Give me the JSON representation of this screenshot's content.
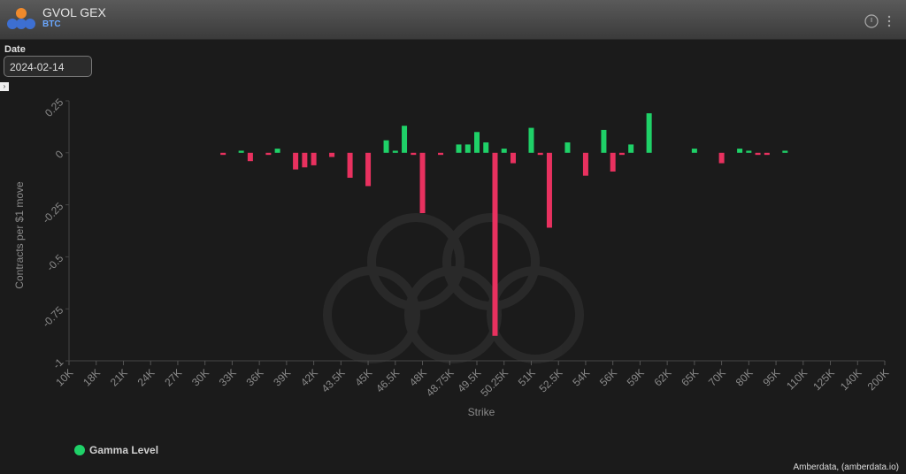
{
  "header": {
    "title": "GVOL GEX",
    "subtitle": "BTC"
  },
  "date": {
    "label": "Date",
    "value": "2024-02-14"
  },
  "chart_data": {
    "type": "bar",
    "xlabel": "Strike",
    "ylabel": "Contracts per $1 move",
    "categories": [
      "10K",
      null,
      null,
      "18K",
      null,
      null,
      "21K",
      null,
      null,
      "24K",
      null,
      null,
      "27K",
      null,
      null,
      "30K",
      null,
      null,
      "33K",
      null,
      null,
      "36K",
      null,
      null,
      "39K",
      null,
      null,
      "42K",
      null,
      null,
      "43.5K",
      null,
      null,
      "45K",
      null,
      null,
      "46.5K",
      null,
      null,
      "48K",
      null,
      null,
      "48.75K",
      null,
      null,
      "49.5K",
      null,
      null,
      "50.25K",
      null,
      null,
      "51K",
      null,
      null,
      "52.5K",
      null,
      null,
      "54K",
      null,
      null,
      "56K",
      null,
      null,
      "59K",
      null,
      null,
      "62K",
      null,
      null,
      "65K",
      null,
      null,
      "70K",
      null,
      null,
      "80K",
      null,
      null,
      "95K",
      null,
      null,
      "110K",
      null,
      null,
      "125K",
      null,
      null,
      "140K",
      null,
      null,
      "200K"
    ],
    "series": [
      {
        "name": "Gamma Level",
        "color": "#1fd168",
        "negative_color": "#e8315f",
        "values": [
          null,
          null,
          null,
          null,
          null,
          null,
          null,
          null,
          null,
          null,
          null,
          null,
          null,
          null,
          null,
          null,
          null,
          -0.01,
          null,
          0.01,
          -0.04,
          null,
          -0.01,
          0.02,
          null,
          -0.08,
          -0.07,
          -0.06,
          null,
          -0.02,
          null,
          -0.12,
          null,
          -0.16,
          null,
          0.06,
          0.01,
          0.13,
          -0.01,
          -0.29,
          null,
          -0.01,
          null,
          0.04,
          0.04,
          0.1,
          0.05,
          -0.88,
          0.02,
          -0.05,
          null,
          0.12,
          -0.01,
          -0.36,
          null,
          0.05,
          null,
          -0.11,
          null,
          0.11,
          -0.09,
          -0.01,
          0.04,
          null,
          0.19,
          null,
          null,
          null,
          null,
          0.02,
          null,
          null,
          -0.05,
          null,
          0.02,
          0.01,
          -0.01,
          -0.01,
          null,
          0.01,
          null,
          null,
          null,
          null,
          null,
          null,
          null,
          null,
          null,
          null,
          null
        ]
      }
    ],
    "ylim": [
      -1,
      0.25
    ],
    "yticks": [
      0.25,
      0,
      -0.25,
      -0.5,
      -0.75,
      -1
    ],
    "grid": false
  },
  "footer": "Amberdata, (amberdata.io)"
}
